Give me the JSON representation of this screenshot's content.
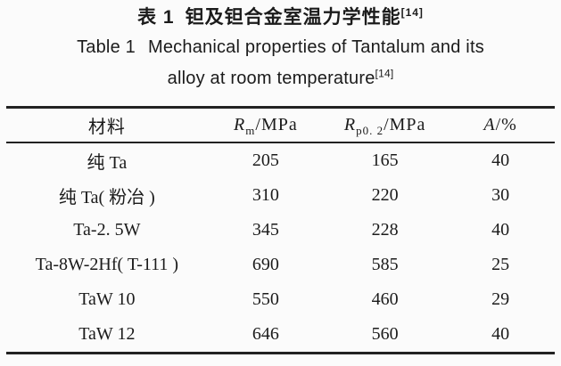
{
  "title": {
    "zh_label": "表 1",
    "zh_text": "钽及钽合金室温力学性能",
    "zh_sup": "[14]",
    "en_label": "Table 1",
    "en_line1_text": "Mechanical properties of Tantalum and its",
    "en_line2_text": "alloy at room temperature",
    "en_sup": "[14]"
  },
  "table": {
    "headers": [
      {
        "label": "材料"
      },
      {
        "symbol": "R",
        "sub": "m",
        "unit": "/MPa"
      },
      {
        "symbol": "R",
        "sub": "p0. 2",
        "unit": "/MPa"
      },
      {
        "symbol": "A",
        "unit": "/%"
      }
    ],
    "rows": [
      {
        "material": "纯 Ta",
        "rm": "205",
        "rp02": "165",
        "a": "40"
      },
      {
        "material": "纯 Ta( 粉冶 )",
        "rm": "310",
        "rp02": "220",
        "a": "30"
      },
      {
        "material": "Ta-2. 5W",
        "rm": "345",
        "rp02": "228",
        "a": "40"
      },
      {
        "material": "Ta-8W-2Hf( T-111 )",
        "rm": "690",
        "rp02": "585",
        "a": "25"
      },
      {
        "material": "TaW 10",
        "rm": "550",
        "rp02": "460",
        "a": "29"
      },
      {
        "material": "TaW 12",
        "rm": "646",
        "rp02": "560",
        "a": "40"
      }
    ]
  },
  "colors": {
    "background": "#fbfbfb",
    "text": "#1b1b1b",
    "rule": "#222222"
  }
}
